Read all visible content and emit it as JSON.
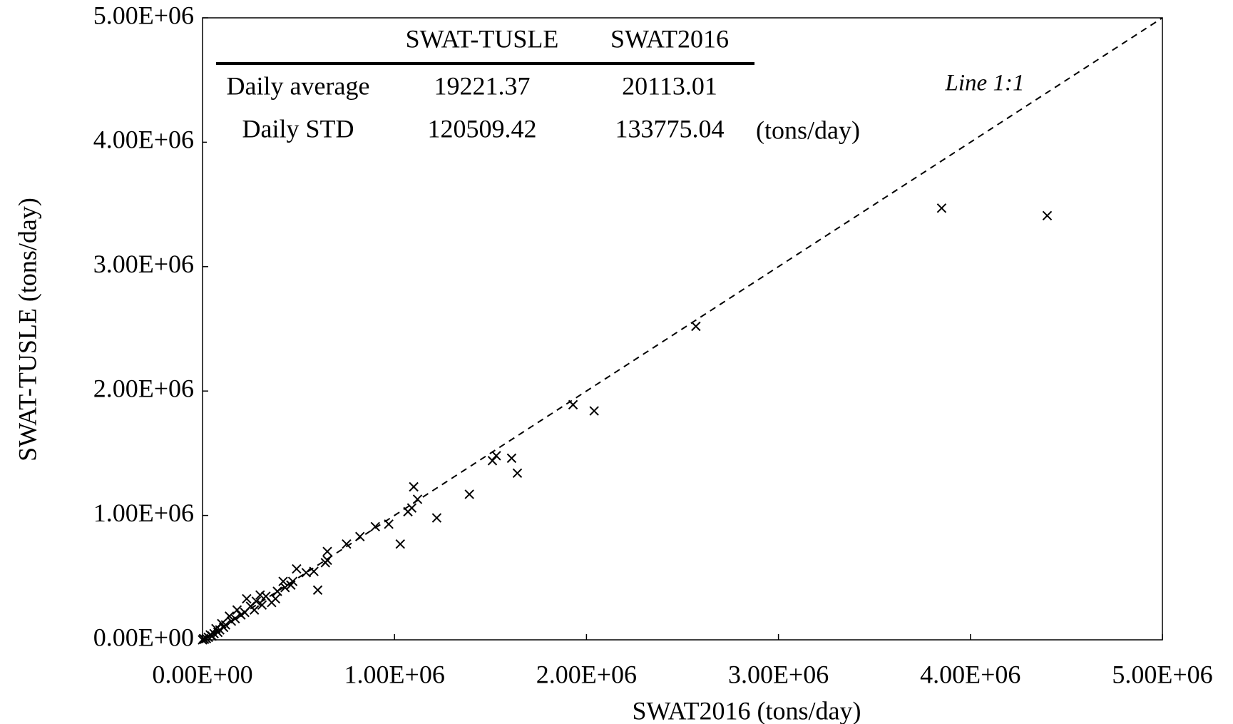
{
  "chart_data": {
    "type": "scatter",
    "x_label": "SWAT2016  (tons/day)",
    "y_label": "SWAT-TUSLE  (tons/day)",
    "xlim": [
      0,
      5000000
    ],
    "ylim": [
      0,
      5000000
    ],
    "xticks": [
      {
        "value": 0,
        "label": "0.00E+00"
      },
      {
        "value": 1000000,
        "label": "1.00E+06"
      },
      {
        "value": 2000000,
        "label": "2.00E+06"
      },
      {
        "value": 3000000,
        "label": "3.00E+06"
      },
      {
        "value": 4000000,
        "label": "4.00E+06"
      },
      {
        "value": 5000000,
        "label": "5.00E+06"
      }
    ],
    "yticks": [
      {
        "value": 0,
        "label": "0.00E+00"
      },
      {
        "value": 1000000,
        "label": "1.00E+06"
      },
      {
        "value": 2000000,
        "label": "2.00E+06"
      },
      {
        "value": 3000000,
        "label": "3.00E+06"
      },
      {
        "value": 4000000,
        "label": "4.00E+06"
      },
      {
        "value": 5000000,
        "label": "5.00E+06"
      }
    ],
    "grid": false,
    "color": "#000000",
    "reference_line": {
      "label": "Line 1:1"
    },
    "x": [
      3850000,
      4400000,
      2570000,
      1930000,
      2040000,
      1510000,
      1530000,
      1610000,
      1640000,
      1390000,
      1220000,
      1100000,
      1120000,
      1090000,
      1070000,
      1030000,
      970000,
      900000,
      820000,
      750000,
      650000,
      650000,
      640000,
      600000,
      580000,
      540000,
      490000,
      470000,
      460000,
      430000,
      420000,
      390000,
      380000,
      360000,
      330000,
      310000,
      300000,
      280000,
      270000,
      250000,
      230000,
      220000,
      200000,
      180000,
      170000,
      150000,
      140000,
      120000,
      110000,
      100000,
      90000,
      80000,
      70000,
      60000,
      50000,
      40000,
      30000,
      20000,
      10000,
      5000,
      0
    ],
    "values": [
      3470000,
      3410000,
      2520000,
      1890000,
      1840000,
      1440000,
      1480000,
      1460000,
      1340000,
      1170000,
      980000,
      1230000,
      1130000,
      1060000,
      1030000,
      770000,
      930000,
      910000,
      830000,
      770000,
      710000,
      640000,
      620000,
      400000,
      550000,
      540000,
      570000,
      470000,
      440000,
      420000,
      470000,
      390000,
      330000,
      300000,
      350000,
      280000,
      360000,
      310000,
      240000,
      270000,
      330000,
      220000,
      200000,
      240000,
      170000,
      150000,
      190000,
      120000,
      100000,
      130000,
      80000,
      60000,
      90000,
      50000,
      30000,
      40000,
      20000,
      10000,
      5000,
      10000,
      0
    ],
    "table": {
      "columns": [
        "SWAT-TUSLE",
        "SWAT2016"
      ],
      "rows": [
        {
          "label": "Daily average",
          "values": [
            19221.37,
            20113.01
          ]
        },
        {
          "label": "Daily STD",
          "values": [
            120509.42,
            133775.04
          ]
        }
      ],
      "unit": "(tons/day)"
    }
  }
}
